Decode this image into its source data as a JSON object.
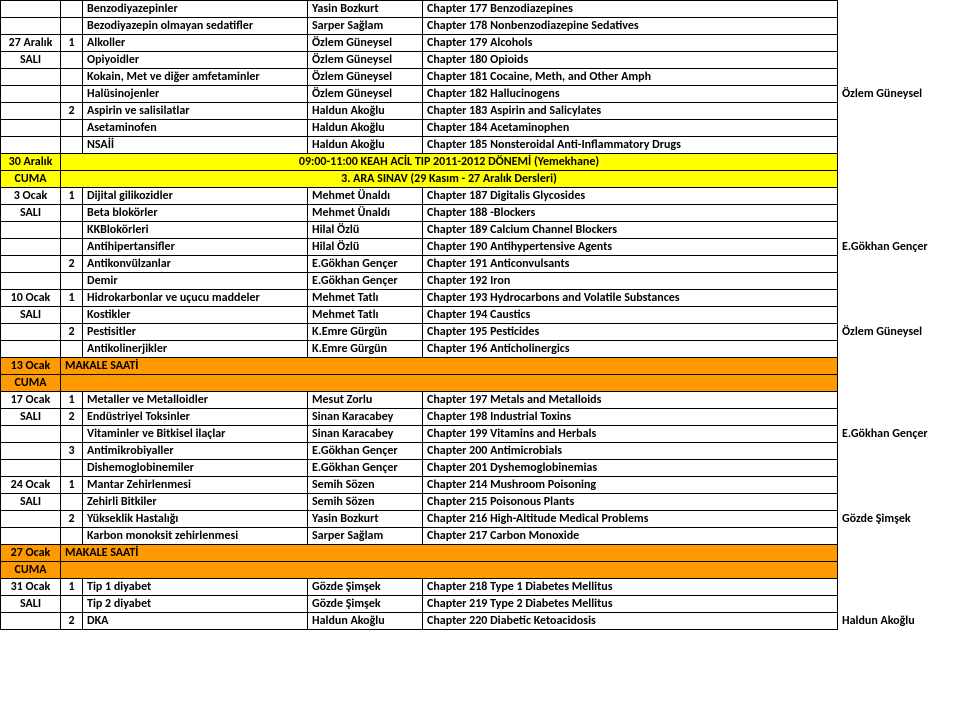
{
  "rows": [
    {
      "c": [
        "",
        "",
        "Benzodiyazepinler",
        "Yasin Bozkurt",
        "Chapter 177 Benzodiazepines"
      ],
      "cls": ""
    },
    {
      "c": [
        "",
        "",
        "Bezodiyazepin olmayan sedatifler",
        "Sarper Sağlam",
        "Chapter 178 Nonbenzodiazepine Sedatives"
      ],
      "cls": ""
    },
    {
      "c": [
        "27 Aralık",
        "1",
        "Alkoller",
        "Özlem Güneysel",
        "Chapter 179 Alcohols"
      ],
      "cls": ""
    },
    {
      "c": [
        "SALI",
        "",
        "Opiyoidler",
        "Özlem Güneysel",
        "Chapter 180 Opioids"
      ],
      "cls": ""
    },
    {
      "c": [
        "",
        "",
        "Kokain, Met ve diğer amfetaminler",
        "Özlem Güneysel",
        "Chapter 181 Cocaine, Meth, and Other Amph"
      ],
      "cls": ""
    },
    {
      "c": [
        "",
        "",
        "Halüsinojenler",
        "Özlem Güneysel",
        "Chapter 182 Hallucinogens"
      ],
      "cls": ""
    },
    {
      "c": [
        "",
        "2",
        "Aspirin ve salisilatlar",
        "Haldun Akoğlu",
        "Chapter 183 Aspirin and Salicylates"
      ],
      "cls": ""
    },
    {
      "c": [
        "",
        "",
        "Asetaminofen",
        "Haldun Akoğlu",
        "Chapter 184 Acetaminophen"
      ],
      "cls": ""
    },
    {
      "c": [
        "",
        "",
        "NSAİİ",
        "Haldun Akoğlu",
        "Chapter 185 Nonsteroidal Anti-Inflammatory Drugs"
      ],
      "cls": ""
    },
    {
      "c": [
        "30 Aralık"
      ],
      "span": "09:00-11:00 KEAH ACİL TIP 2011-2012 DÖNEMİ (Yemekhane)",
      "cls": "row-yellow"
    },
    {
      "c": [
        "CUMA"
      ],
      "span": "3. ARA SINAV (29 Kasım - 27 Aralık Dersleri)",
      "cls": "row-yellow"
    },
    {
      "c": [
        "3 Ocak",
        "1",
        "Dijital gilikozidler",
        "Mehmet Ünaldı",
        "Chapter 187 Digitalis Glycosides"
      ],
      "cls": ""
    },
    {
      "c": [
        "SALI",
        "",
        "Beta blokörler",
        "Mehmet Ünaldı",
        "Chapter 188 -Blockers"
      ],
      "cls": ""
    },
    {
      "c": [
        "",
        "",
        "KKBlokörleri",
        "Hilal Özlü",
        "Chapter 189 Calcium Channel Blockers"
      ],
      "cls": ""
    },
    {
      "c": [
        "",
        "",
        "Antihipertansifler",
        "Hilal Özlü",
        "Chapter 190 Antihypertensive Agents"
      ],
      "cls": ""
    },
    {
      "c": [
        "",
        "2",
        "Antikonvülzanlar",
        "E.Gökhan Gençer",
        "Chapter 191 Anticonvulsants"
      ],
      "cls": ""
    },
    {
      "c": [
        "",
        "",
        "Demir",
        "E.Gökhan Gençer",
        "Chapter 192 Iron"
      ],
      "cls": ""
    },
    {
      "c": [
        "10 Ocak",
        "1",
        "Hidrokarbonlar ve uçucu maddeler",
        "Mehmet Tatlı",
        "Chapter 193 Hydrocarbons and Volatile Substances"
      ],
      "cls": ""
    },
    {
      "c": [
        "SALI",
        "",
        "Kostikler",
        "Mehmet Tatlı",
        "Chapter 194 Caustics"
      ],
      "cls": ""
    },
    {
      "c": [
        "",
        "2",
        "Pestisitler",
        "K.Emre Gürgün",
        "Chapter 195 Pesticides"
      ],
      "cls": ""
    },
    {
      "c": [
        "",
        "",
        "Antikolinerjikler",
        "K.Emre Gürgün",
        "Chapter 196 Anticholinergics"
      ],
      "cls": ""
    },
    {
      "c": [
        "13 Ocak",
        "",
        "MAKALE SAATİ",
        "",
        ""
      ],
      "cls": "row-orange",
      "merge34": true
    },
    {
      "c": [
        "CUMA",
        "",
        "",
        "",
        ""
      ],
      "cls": "row-orange",
      "merge34": true
    },
    {
      "c": [
        "17 Ocak",
        "1",
        "Metaller ve Metalloidler",
        "Mesut Zorlu",
        "Chapter 197 Metals and Metalloids"
      ],
      "cls": ""
    },
    {
      "c": [
        "SALI",
        "2",
        "Endüstriyel Toksinler",
        "Sinan Karacabey",
        "Chapter 198 Industrial Toxins"
      ],
      "cls": ""
    },
    {
      "c": [
        "",
        "",
        "Vitaminler ve Bitkisel  ilaçlar",
        "Sinan Karacabey",
        "Chapter 199 Vitamins and Herbals"
      ],
      "cls": ""
    },
    {
      "c": [
        "",
        "3",
        "Antimikrobiyaller",
        "E.Gökhan Gençer",
        "Chapter 200 Antimicrobials"
      ],
      "cls": ""
    },
    {
      "c": [
        "",
        "",
        "Dishemoglobinemiler",
        "E.Gökhan Gençer",
        "Chapter 201 Dyshemoglobinemias"
      ],
      "cls": ""
    },
    {
      "c": [
        "24 Ocak",
        "1",
        "Mantar Zehirlenmesi",
        "Semih Sözen",
        "Chapter 214 Mushroom Poisoning"
      ],
      "cls": ""
    },
    {
      "c": [
        "SALI",
        "",
        "Zehirli Bitkiler",
        "Semih Sözen",
        "Chapter 215 Poisonous Plants"
      ],
      "cls": ""
    },
    {
      "c": [
        "",
        "2",
        "Yükseklik Hastalığı",
        "Yasin Bozkurt",
        "Chapter 216 High-Altitude Medical Problems"
      ],
      "cls": ""
    },
    {
      "c": [
        "",
        "",
        "Karbon monoksit zehirlenmesi",
        "Sarper Sağlam",
        "Chapter 217 Carbon Monoxide"
      ],
      "cls": ""
    },
    {
      "c": [
        "27 Ocak",
        "",
        "MAKALE SAATİ",
        "",
        ""
      ],
      "cls": "row-orange",
      "merge34": true
    },
    {
      "c": [
        "CUMA",
        "",
        "",
        "",
        ""
      ],
      "cls": "row-orange",
      "merge34": true
    },
    {
      "c": [
        "31 Ocak",
        "1",
        "Tip 1 diyabet",
        "Gözde Şimşek",
        "Chapter 218 Type 1 Diabetes Mellitus"
      ],
      "cls": ""
    },
    {
      "c": [
        "SALI",
        "",
        "Tip 2 diyabet",
        "Gözde Şimşek",
        "Chapter 219 Type 2 Diabetes Mellitus"
      ],
      "cls": ""
    },
    {
      "c": [
        "",
        "2",
        "DKA",
        "Haldun Akoğlu",
        "Chapter 220 Diabetic Ketoacidosis"
      ],
      "cls": ""
    }
  ],
  "sideLabels": {
    "5": "Özlem Güneysel",
    "14": "E.Gökhan Gençer",
    "19": "Özlem Güneysel",
    "25": "E.Gökhan Gençer",
    "30": "Gözde Şimşek",
    "36": "Haldun Akoğlu"
  }
}
